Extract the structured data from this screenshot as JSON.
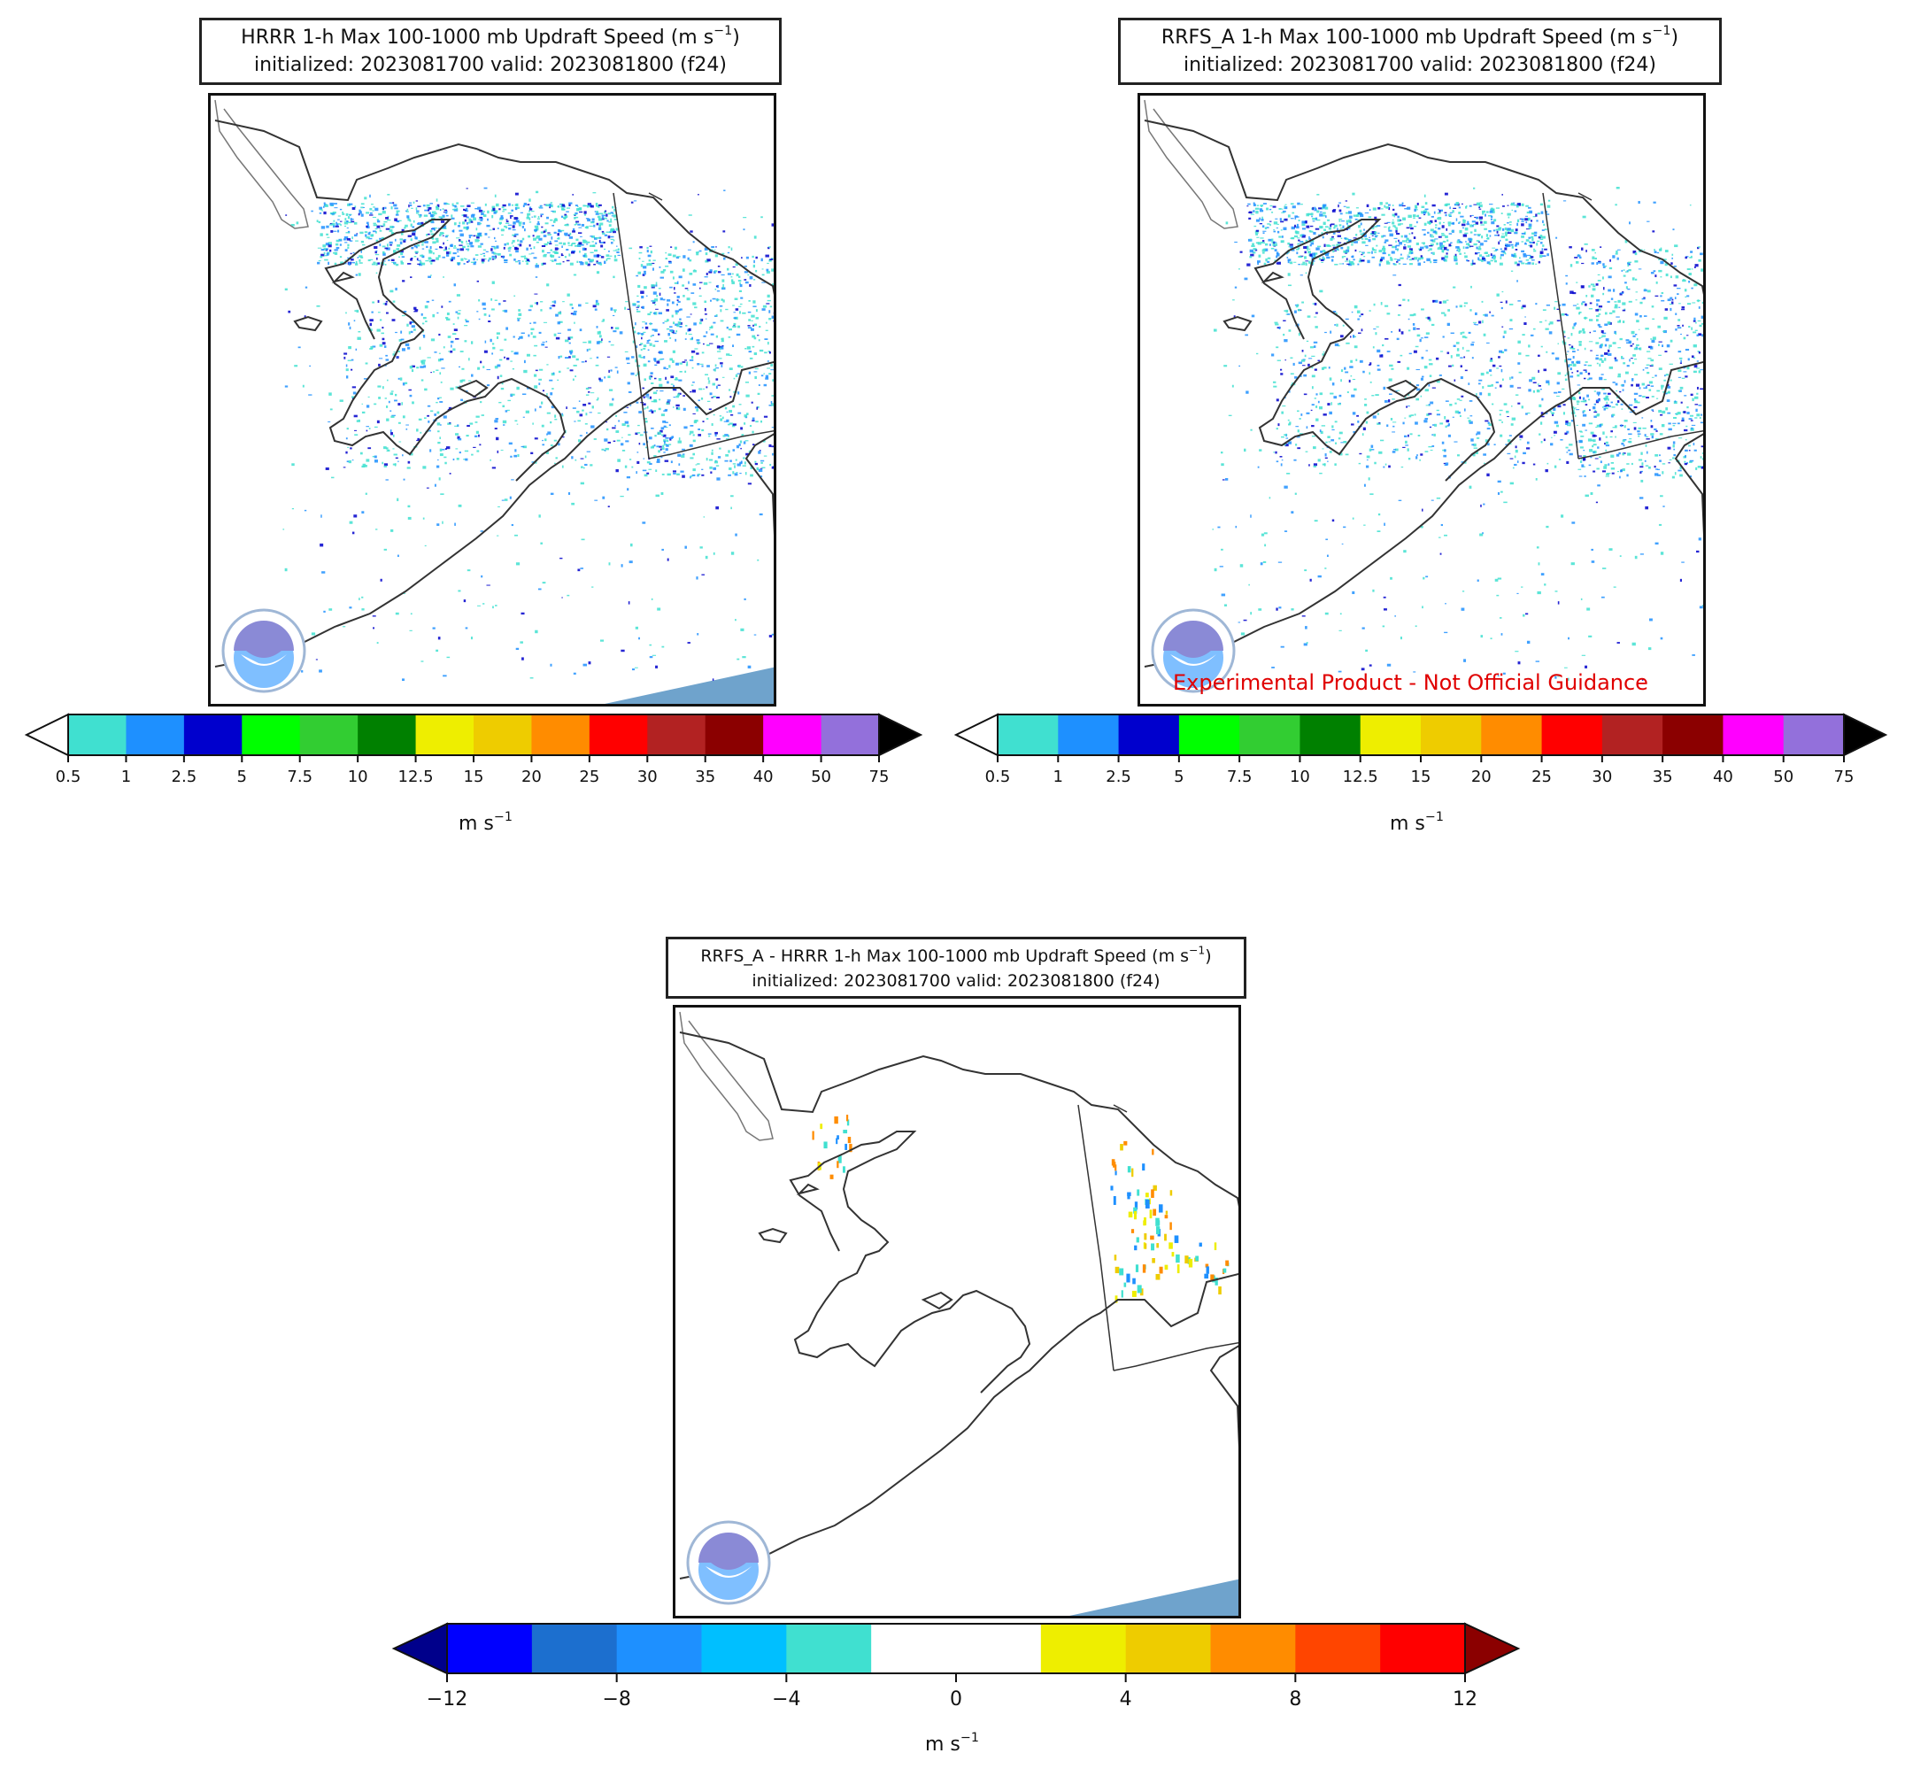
{
  "panels": [
    {
      "title_line1": "HRRR 1-h Max 100-1000 mb Updraft Speed (m s",
      "title_sup": "−1",
      "title_close": ")",
      "title_line2": "initialized: 2023081700 valid: 2023081800 (f24)",
      "logo_text": "NOAA"
    },
    {
      "title_line1": "RRFS_A 1-h Max 100-1000 mb Updraft Speed (m s",
      "title_sup": "−1",
      "title_close": ")",
      "title_line2": "initialized: 2023081700 valid: 2023081800 (f24)",
      "logo_text": "NOAA",
      "disclaimer": "Experimental Product - Not Official Guidance"
    },
    {
      "title_line1": "RRFS_A - HRRR 1-h Max 100-1000 mb Updraft Speed (m s",
      "title_sup": "−1",
      "title_close": ")",
      "title_line2": "initialized: 2023081700 valid: 2023081800 (f24)",
      "logo_text": "NOAA"
    }
  ],
  "colorbar_speed": {
    "units": "m s",
    "units_sup": "−1",
    "ticks": [
      "0.5",
      "1",
      "2.5",
      "5",
      "7.5",
      "10",
      "12.5",
      "15",
      "20",
      "25",
      "30",
      "35",
      "40",
      "50",
      "75"
    ],
    "colors": [
      "#40E0D0",
      "#1E90FF",
      "#0000CD",
      "#00FF00",
      "#32CD32",
      "#008000",
      "#EEEE00",
      "#EECC00",
      "#FF8C00",
      "#FF0000",
      "#B22222",
      "#8B0000",
      "#FF00FF",
      "#9370DB"
    ],
    "under_color": "#ffffff",
    "over_color": "#000000"
  },
  "colorbar_diff": {
    "units": "m s",
    "units_sup": "−1",
    "ticks": [
      "−12",
      "−8",
      "−4",
      "0",
      "4",
      "8",
      "12"
    ],
    "colors": [
      "#0000FF",
      "#1C6FCF",
      "#1E90FF",
      "#00BFFF",
      "#40E0D0",
      "#FFFFFF",
      "#FFFFFF",
      "#EEEE00",
      "#EECC00",
      "#FF8C00",
      "#FF4500",
      "#FF0000"
    ],
    "under_color": "#00008B",
    "over_color": "#8B0000"
  }
}
